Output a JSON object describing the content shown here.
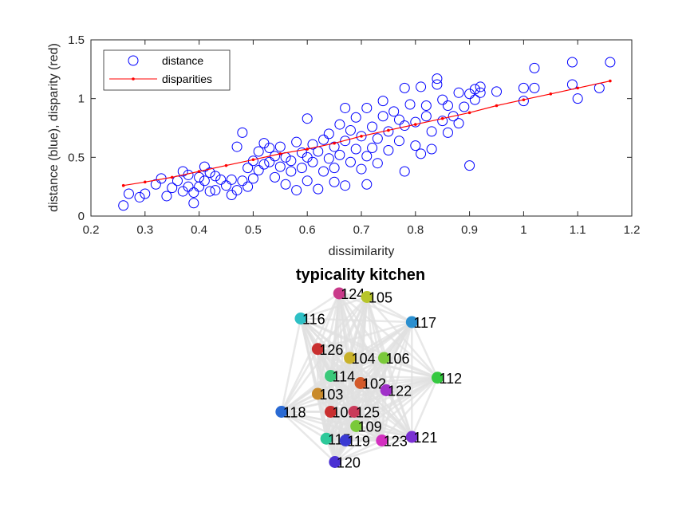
{
  "chart_data": [
    {
      "type": "scatter",
      "xlabel": "dissimilarity",
      "ylabel": "distance (blue), disparity (red)",
      "xlim": [
        0.2,
        1.2
      ],
      "ylim": [
        0,
        1.5
      ],
      "xticks": [
        "0.2",
        "0.3",
        "0.4",
        "0.5",
        "0.6",
        "0.7",
        "0.8",
        "0.9",
        "1",
        "1.1",
        "1.2"
      ],
      "yticks": [
        "0",
        "0.5",
        "1",
        "1.5"
      ],
      "legend_position": "top-left",
      "legend": [
        {
          "label": "distance",
          "marker": "circle",
          "color": "#0000ff"
        },
        {
          "label": "disparities",
          "marker": "line-dot",
          "color": "#ff0000"
        }
      ],
      "series": [
        {
          "name": "distance",
          "color": "#0000ff",
          "points": [
            [
              0.26,
              0.09
            ],
            [
              0.27,
              0.19
            ],
            [
              0.29,
              0.16
            ],
            [
              0.3,
              0.19
            ],
            [
              0.32,
              0.27
            ],
            [
              0.33,
              0.32
            ],
            [
              0.34,
              0.17
            ],
            [
              0.35,
              0.24
            ],
            [
              0.36,
              0.3
            ],
            [
              0.37,
              0.21
            ],
            [
              0.37,
              0.38
            ],
            [
              0.38,
              0.25
            ],
            [
              0.38,
              0.35
            ],
            [
              0.39,
              0.11
            ],
            [
              0.39,
              0.2
            ],
            [
              0.4,
              0.25
            ],
            [
              0.4,
              0.33
            ],
            [
              0.41,
              0.42
            ],
            [
              0.41,
              0.3
            ],
            [
              0.42,
              0.21
            ],
            [
              0.42,
              0.37
            ],
            [
              0.43,
              0.34
            ],
            [
              0.43,
              0.22
            ],
            [
              0.44,
              0.31
            ],
            [
              0.45,
              0.26
            ],
            [
              0.46,
              0.31
            ],
            [
              0.46,
              0.18
            ],
            [
              0.47,
              0.22
            ],
            [
              0.47,
              0.59
            ],
            [
              0.48,
              0.71
            ],
            [
              0.48,
              0.3
            ],
            [
              0.49,
              0.41
            ],
            [
              0.49,
              0.25
            ],
            [
              0.5,
              0.47
            ],
            [
              0.5,
              0.32
            ],
            [
              0.51,
              0.39
            ],
            [
              0.51,
              0.55
            ],
            [
              0.52,
              0.44
            ],
            [
              0.52,
              0.62
            ],
            [
              0.53,
              0.46
            ],
            [
              0.53,
              0.58
            ],
            [
              0.54,
              0.33
            ],
            [
              0.54,
              0.51
            ],
            [
              0.55,
              0.42
            ],
            [
              0.55,
              0.59
            ],
            [
              0.56,
              0.27
            ],
            [
              0.56,
              0.5
            ],
            [
              0.57,
              0.38
            ],
            [
              0.57,
              0.47
            ],
            [
              0.58,
              0.22
            ],
            [
              0.58,
              0.63
            ],
            [
              0.59,
              0.41
            ],
            [
              0.59,
              0.54
            ],
            [
              0.6,
              0.3
            ],
            [
              0.6,
              0.5
            ],
            [
              0.6,
              0.83
            ],
            [
              0.61,
              0.46
            ],
            [
              0.61,
              0.61
            ],
            [
              0.62,
              0.23
            ],
            [
              0.62,
              0.55
            ],
            [
              0.63,
              0.38
            ],
            [
              0.63,
              0.65
            ],
            [
              0.64,
              0.49
            ],
            [
              0.64,
              0.7
            ],
            [
              0.65,
              0.29
            ],
            [
              0.65,
              0.41
            ],
            [
              0.65,
              0.59
            ],
            [
              0.66,
              0.52
            ],
            [
              0.66,
              0.78
            ],
            [
              0.67,
              0.26
            ],
            [
              0.67,
              0.64
            ],
            [
              0.67,
              0.92
            ],
            [
              0.68,
              0.46
            ],
            [
              0.68,
              0.73
            ],
            [
              0.69,
              0.57
            ],
            [
              0.69,
              0.84
            ],
            [
              0.7,
              0.4
            ],
            [
              0.7,
              0.68
            ],
            [
              0.71,
              0.27
            ],
            [
              0.71,
              0.51
            ],
            [
              0.71,
              0.92
            ],
            [
              0.72,
              0.58
            ],
            [
              0.72,
              0.76
            ],
            [
              0.73,
              0.45
            ],
            [
              0.73,
              0.66
            ],
            [
              0.74,
              0.85
            ],
            [
              0.74,
              0.98
            ],
            [
              0.75,
              0.72
            ],
            [
              0.75,
              0.56
            ],
            [
              0.76,
              0.89
            ],
            [
              0.77,
              0.64
            ],
            [
              0.77,
              0.82
            ],
            [
              0.78,
              0.38
            ],
            [
              0.78,
              0.77
            ],
            [
              0.78,
              1.09
            ],
            [
              0.79,
              0.95
            ],
            [
              0.8,
              0.6
            ],
            [
              0.8,
              0.8
            ],
            [
              0.81,
              1.1
            ],
            [
              0.81,
              0.53
            ],
            [
              0.82,
              0.85
            ],
            [
              0.82,
              0.94
            ],
            [
              0.83,
              0.57
            ],
            [
              0.83,
              0.72
            ],
            [
              0.84,
              1.17
            ],
            [
              0.84,
              1.12
            ],
            [
              0.85,
              0.81
            ],
            [
              0.85,
              0.99
            ],
            [
              0.86,
              0.71
            ],
            [
              0.86,
              0.94
            ],
            [
              0.87,
              0.85
            ],
            [
              0.88,
              0.79
            ],
            [
              0.88,
              1.05
            ],
            [
              0.89,
              0.93
            ],
            [
              0.9,
              0.43
            ],
            [
              0.9,
              1.04
            ],
            [
              0.91,
              1.08
            ],
            [
              0.91,
              0.99
            ],
            [
              0.92,
              1.1
            ],
            [
              0.92,
              1.05
            ],
            [
              0.95,
              1.06
            ],
            [
              1.0,
              0.98
            ],
            [
              1.0,
              1.09
            ],
            [
              1.02,
              1.09
            ],
            [
              1.02,
              1.26
            ],
            [
              1.09,
              1.31
            ],
            [
              1.09,
              1.12
            ],
            [
              1.1,
              1.0
            ],
            [
              1.14,
              1.09
            ],
            [
              1.16,
              1.31
            ]
          ]
        },
        {
          "name": "disparities",
          "color": "#ff0000",
          "points": [
            [
              0.26,
              0.26
            ],
            [
              0.3,
              0.29
            ],
            [
              0.35,
              0.33
            ],
            [
              0.4,
              0.38
            ],
            [
              0.45,
              0.43
            ],
            [
              0.5,
              0.48
            ],
            [
              0.55,
              0.53
            ],
            [
              0.6,
              0.57
            ],
            [
              0.65,
              0.62
            ],
            [
              0.7,
              0.68
            ],
            [
              0.75,
              0.73
            ],
            [
              0.8,
              0.78
            ],
            [
              0.85,
              0.83
            ],
            [
              0.9,
              0.88
            ],
            [
              0.95,
              0.94
            ],
            [
              1.0,
              0.99
            ],
            [
              1.05,
              1.04
            ],
            [
              1.1,
              1.09
            ],
            [
              1.16,
              1.15
            ]
          ]
        }
      ]
    },
    {
      "type": "network",
      "title": "typicality kitchen",
      "edge_color": "#e0e0e0",
      "nodes": [
        {
          "id": "124",
          "x": 0.4,
          "y": 0.96,
          "color": "#c93a8a"
        },
        {
          "id": "105",
          "x": 0.53,
          "y": 0.94,
          "color": "#b7c52a"
        },
        {
          "id": "116",
          "x": 0.22,
          "y": 0.82,
          "color": "#2ec0c5"
        },
        {
          "id": "117",
          "x": 0.74,
          "y": 0.8,
          "color": "#2b8fcf"
        },
        {
          "id": "126",
          "x": 0.3,
          "y": 0.65,
          "color": "#c93030"
        },
        {
          "id": "104",
          "x": 0.45,
          "y": 0.6,
          "color": "#c9b22a"
        },
        {
          "id": "106",
          "x": 0.61,
          "y": 0.6,
          "color": "#7ac93a"
        },
        {
          "id": "112",
          "x": 0.86,
          "y": 0.49,
          "color": "#35c940"
        },
        {
          "id": "114",
          "x": 0.36,
          "y": 0.5,
          "color": "#3ac97a"
        },
        {
          "id": "102",
          "x": 0.5,
          "y": 0.46,
          "color": "#d35a2a"
        },
        {
          "id": "122",
          "x": 0.62,
          "y": 0.42,
          "color": "#a030c9"
        },
        {
          "id": "103",
          "x": 0.3,
          "y": 0.4,
          "color": "#c98a2a"
        },
        {
          "id": "118",
          "x": 0.13,
          "y": 0.3,
          "color": "#2a6ad3"
        },
        {
          "id": "101",
          "x": 0.36,
          "y": 0.3,
          "color": "#c93030"
        },
        {
          "id": "125",
          "x": 0.47,
          "y": 0.3,
          "color": "#c93a5a"
        },
        {
          "id": "109",
          "x": 0.48,
          "y": 0.22,
          "color": "#7ac93a"
        },
        {
          "id": "115",
          "x": 0.34,
          "y": 0.15,
          "color": "#2ec99a"
        },
        {
          "id": "119",
          "x": 0.43,
          "y": 0.14,
          "color": "#3a3ad3"
        },
        {
          "id": "123",
          "x": 0.6,
          "y": 0.14,
          "color": "#d330c0"
        },
        {
          "id": "121",
          "x": 0.74,
          "y": 0.16,
          "color": "#7a30d3"
        },
        {
          "id": "120",
          "x": 0.38,
          "y": 0.02,
          "color": "#4a30d3"
        }
      ]
    }
  ]
}
